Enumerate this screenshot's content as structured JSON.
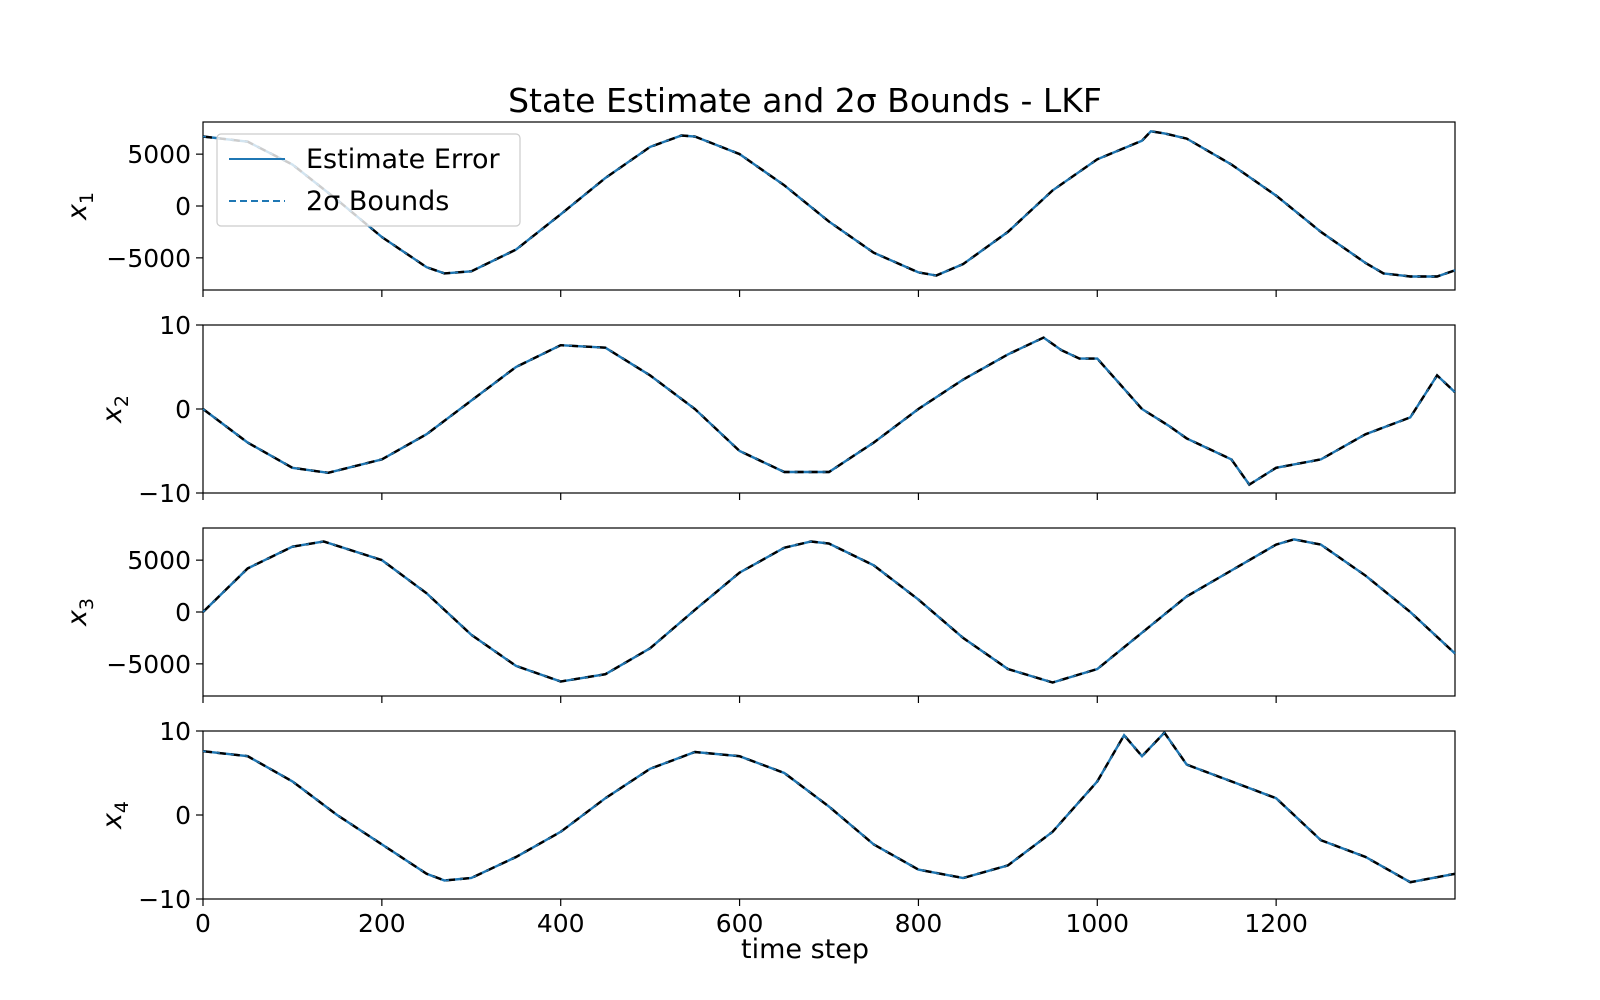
{
  "chart_data": {
    "type": "line",
    "title": "State Estimate and 2σ Bounds - LKF",
    "xlabel": "time step",
    "xlim": [
      0,
      1400
    ],
    "xticks": [
      0,
      200,
      400,
      600,
      800,
      1000,
      1200
    ],
    "legend": {
      "placement": "upper-left of first subplot",
      "entries": [
        {
          "label": "Estimate Error",
          "style": "solid",
          "color": "#1f77b4"
        },
        {
          "label": "2σ Bounds",
          "style": "dashed",
          "color": "#1f77b4"
        }
      ]
    },
    "line_colors": {
      "estimate": "#1f77b4",
      "bounds_dark": "#000000"
    },
    "subplots": [
      {
        "ylabel_base": "x",
        "ylabel_sub": "1",
        "ylim": [
          -8100,
          8100
        ],
        "yticks": [
          5000,
          0,
          -5000
        ],
        "ytick_labels": [
          "5000",
          "0",
          "−5000"
        ],
        "x": [
          0,
          50,
          100,
          150,
          200,
          250,
          270,
          300,
          350,
          400,
          450,
          500,
          535,
          550,
          600,
          650,
          700,
          750,
          800,
          820,
          850,
          900,
          950,
          1000,
          1050,
          1060,
          1075,
          1100,
          1150,
          1200,
          1250,
          1300,
          1320,
          1350,
          1380,
          1400
        ],
        "y": [
          6700,
          6200,
          4000,
          600,
          -3000,
          -5900,
          -6500,
          -6300,
          -4200,
          -800,
          2700,
          5700,
          6800,
          6700,
          5000,
          2000,
          -1500,
          -4500,
          -6400,
          -6700,
          -5600,
          -2500,
          1500,
          4500,
          6300,
          7200,
          7000,
          6500,
          4000,
          1000,
          -2500,
          -5500,
          -6500,
          -6800,
          -6800,
          -6200
        ]
      },
      {
        "ylabel_base": "x",
        "ylabel_sub": "2",
        "ylim": [
          -10,
          10
        ],
        "yticks": [
          10,
          0,
          -10
        ],
        "ytick_labels": [
          "10",
          "0",
          "−10"
        ],
        "x": [
          0,
          50,
          100,
          140,
          200,
          250,
          300,
          350,
          400,
          450,
          500,
          550,
          600,
          650,
          700,
          750,
          800,
          850,
          900,
          940,
          960,
          980,
          1000,
          1050,
          1080,
          1100,
          1150,
          1170,
          1200,
          1250,
          1300,
          1350,
          1380,
          1400
        ],
        "y": [
          0,
          -4,
          -7,
          -7.6,
          -6,
          -3,
          1,
          5,
          7.6,
          7.3,
          4,
          0,
          -5,
          -7.5,
          -7.5,
          -4,
          0,
          3.5,
          6.5,
          8.5,
          7,
          6,
          6,
          0,
          -2,
          -3.5,
          -6,
          -9,
          -7,
          -6,
          -3,
          -1,
          4,
          2
        ]
      },
      {
        "ylabel_base": "x",
        "ylabel_sub": "3",
        "ylim": [
          -8100,
          8100
        ],
        "yticks": [
          5000,
          0,
          -5000
        ],
        "ytick_labels": [
          "5000",
          "0",
          "−5000"
        ],
        "x": [
          0,
          50,
          100,
          135,
          200,
          250,
          300,
          350,
          400,
          450,
          500,
          550,
          600,
          650,
          680,
          700,
          750,
          800,
          850,
          900,
          950,
          1000,
          1050,
          1100,
          1150,
          1200,
          1220,
          1250,
          1300,
          1350,
          1400
        ],
        "y": [
          0,
          4200,
          6300,
          6800,
          5000,
          1800,
          -2200,
          -5200,
          -6700,
          -6000,
          -3500,
          200,
          3800,
          6200,
          6800,
          6600,
          4500,
          1200,
          -2500,
          -5500,
          -6800,
          -5500,
          -2000,
          1500,
          4000,
          6500,
          7000,
          6500,
          3500,
          0,
          -4000
        ]
      },
      {
        "ylabel_base": "x",
        "ylabel_sub": "4",
        "ylim": [
          -10,
          10
        ],
        "yticks": [
          10,
          0,
          -10
        ],
        "ytick_labels": [
          "10",
          "0",
          "−10"
        ],
        "x": [
          0,
          50,
          100,
          150,
          200,
          250,
          270,
          300,
          350,
          400,
          450,
          500,
          550,
          600,
          650,
          700,
          750,
          800,
          850,
          900,
          950,
          1000,
          1030,
          1050,
          1075,
          1100,
          1150,
          1200,
          1250,
          1300,
          1350,
          1400
        ],
        "y": [
          7.6,
          7,
          4,
          0,
          -3.5,
          -7,
          -7.8,
          -7.5,
          -5,
          -2,
          2,
          5.5,
          7.5,
          7,
          5,
          1,
          -3.5,
          -6.5,
          -7.5,
          -6,
          -2,
          4,
          9.5,
          7,
          9.8,
          6,
          4,
          2,
          -3,
          -5,
          -8,
          -7
        ]
      }
    ]
  }
}
